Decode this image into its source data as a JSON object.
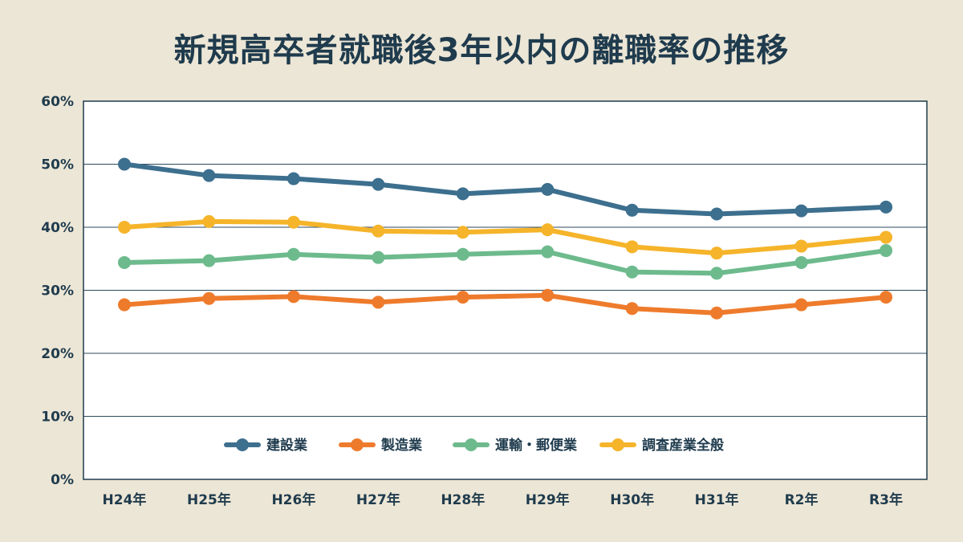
{
  "chart_data": {
    "type": "line",
    "title": "新規高卒者就職後3年以内の離職率の推移",
    "xlabel": "",
    "ylabel": "",
    "ylim": [
      0,
      60
    ],
    "ytick_labels": [
      "0%",
      "10%",
      "20%",
      "30%",
      "40%",
      "50%",
      "60%"
    ],
    "ytick_values": [
      0,
      10,
      20,
      30,
      40,
      50,
      60
    ],
    "categories": [
      "H24年",
      "H25年",
      "H26年",
      "H27年",
      "H28年",
      "H29年",
      "H30年",
      "H31年",
      "R2年",
      "R3年"
    ],
    "grid": true,
    "legend_position": "bottom-center",
    "series": [
      {
        "name": "建設業",
        "color": "#3d6f8e",
        "values": [
          50.0,
          48.2,
          47.7,
          46.8,
          45.3,
          46.0,
          42.7,
          42.1,
          42.6,
          43.2
        ]
      },
      {
        "name": "製造業",
        "color": "#ee7b2c",
        "values": [
          27.7,
          28.7,
          29.0,
          28.1,
          28.9,
          29.2,
          27.1,
          26.4,
          27.7,
          28.9
        ]
      },
      {
        "name": "運輸・郵便業",
        "color": "#6dba8d",
        "values": [
          34.4,
          34.7,
          35.7,
          35.2,
          35.7,
          36.1,
          32.9,
          32.7,
          34.4,
          36.3
        ]
      },
      {
        "name": "調査産業全般",
        "color": "#f5b42a",
        "values": [
          40.0,
          40.9,
          40.8,
          39.4,
          39.2,
          39.6,
          36.9,
          35.9,
          37.0,
          38.4
        ]
      }
    ]
  }
}
